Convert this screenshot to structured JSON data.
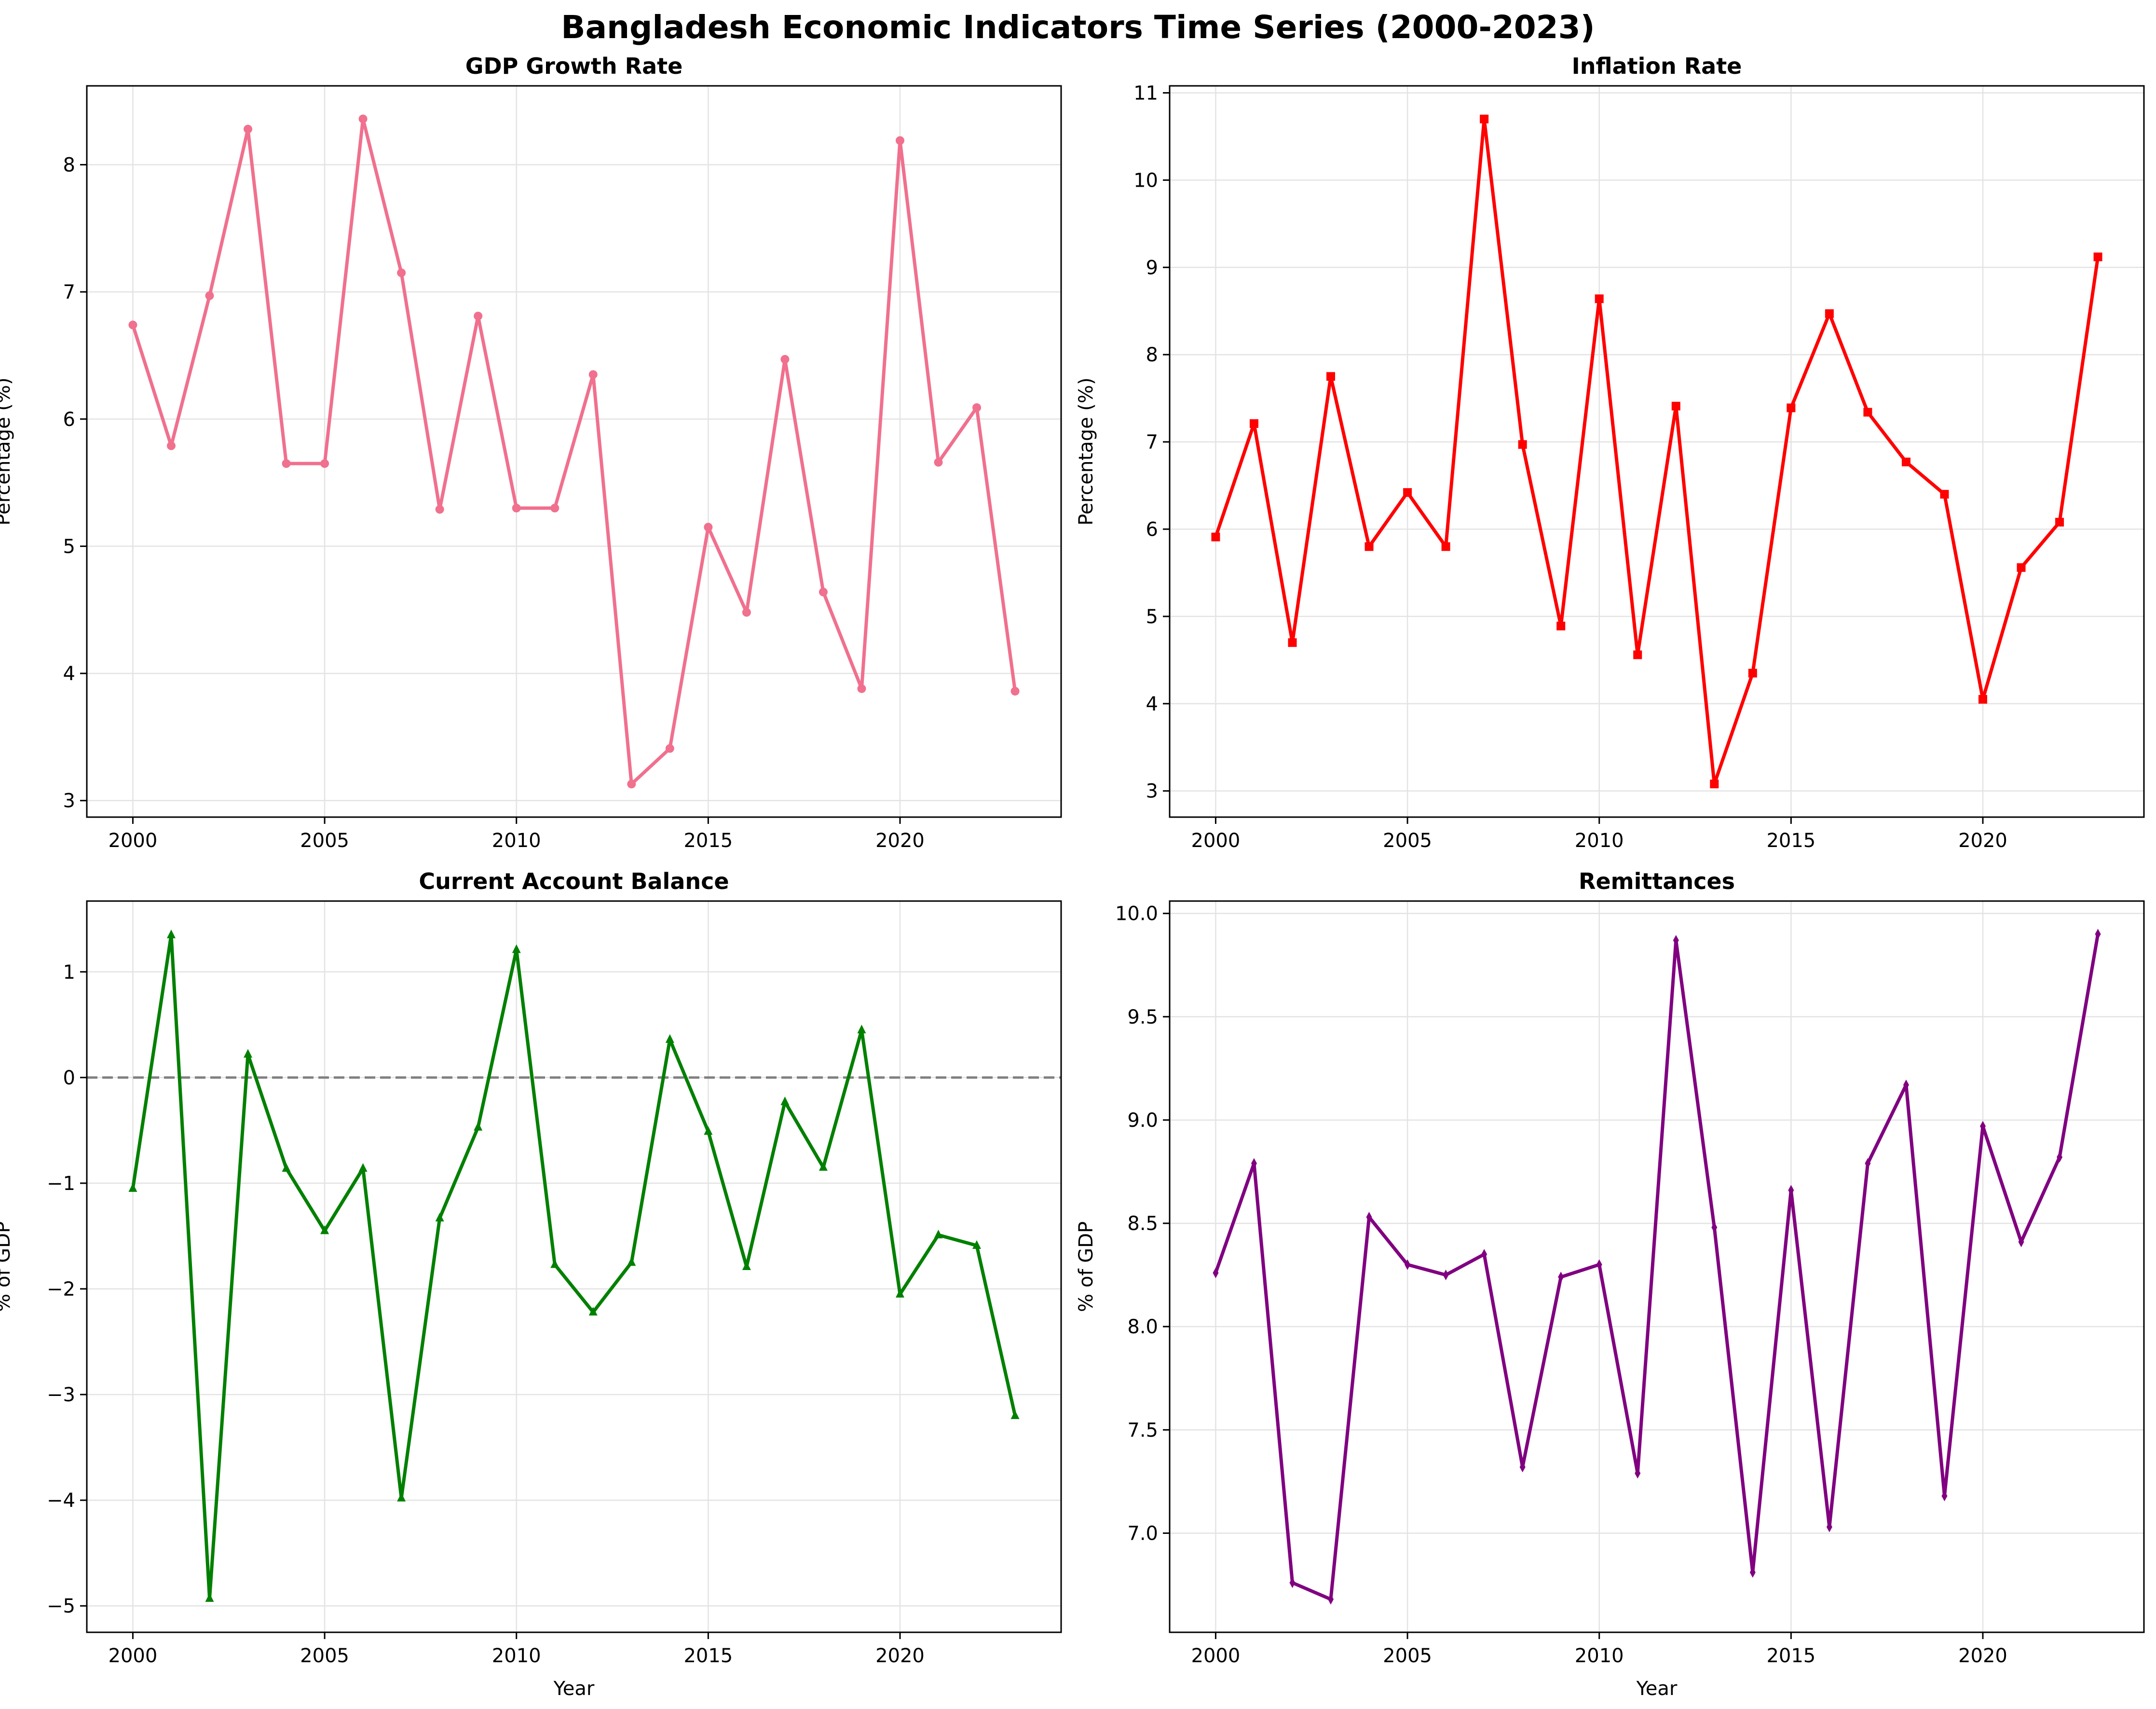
{
  "suptitle": "Bangladesh Economic Indicators Time Series (2000-2023)",
  "chart_data": [
    {
      "type": "line",
      "title": "GDP Growth Rate",
      "xlabel": "",
      "ylabel": "Percentage (%)",
      "x": [
        2000,
        2001,
        2002,
        2003,
        2004,
        2005,
        2006,
        2007,
        2008,
        2009,
        2010,
        2011,
        2012,
        2013,
        2014,
        2015,
        2016,
        2017,
        2018,
        2019,
        2020,
        2021,
        2022,
        2023
      ],
      "values": [
        6.74,
        5.79,
        6.97,
        8.28,
        5.65,
        5.65,
        8.36,
        7.15,
        5.29,
        6.81,
        5.3,
        5.3,
        6.35,
        3.13,
        3.41,
        5.15,
        4.48,
        6.47,
        4.64,
        3.88,
        8.19,
        5.66,
        6.09,
        3.86
      ],
      "xlim": [
        1998.8,
        2024.2
      ],
      "ylim": [
        2.87,
        8.62
      ],
      "xticks": [
        2000,
        2005,
        2010,
        2015,
        2020
      ],
      "yticks": [
        3,
        4,
        5,
        6,
        7,
        8
      ],
      "color": "#f0708e",
      "marker": "circle",
      "grid": true
    },
    {
      "type": "line",
      "title": "Inflation Rate",
      "xlabel": "",
      "ylabel": "Percentage (%)",
      "x": [
        2000,
        2001,
        2002,
        2003,
        2004,
        2005,
        2006,
        2007,
        2008,
        2009,
        2010,
        2011,
        2012,
        2013,
        2014,
        2015,
        2016,
        2017,
        2018,
        2019,
        2020,
        2021,
        2022,
        2023
      ],
      "values": [
        5.91,
        7.21,
        4.7,
        7.75,
        5.8,
        6.42,
        5.8,
        10.7,
        6.97,
        4.89,
        8.64,
        4.56,
        7.41,
        3.08,
        4.35,
        7.39,
        8.47,
        7.34,
        6.77,
        6.4,
        4.05,
        5.56,
        6.08,
        9.12
      ],
      "xlim": [
        1998.8,
        2024.2
      ],
      "ylim": [
        2.7,
        11.08
      ],
      "xticks": [
        2000,
        2005,
        2010,
        2015,
        2020
      ],
      "yticks": [
        3,
        4,
        5,
        6,
        7,
        8,
        9,
        10,
        11
      ],
      "color": "#ff0000",
      "marker": "square",
      "grid": true
    },
    {
      "type": "line",
      "title": "Current Account Balance",
      "xlabel": "Year",
      "ylabel": "% of GDP",
      "x": [
        2000,
        2001,
        2002,
        2003,
        2004,
        2005,
        2006,
        2007,
        2008,
        2009,
        2010,
        2011,
        2012,
        2013,
        2014,
        2015,
        2016,
        2017,
        2018,
        2019,
        2020,
        2021,
        2022,
        2023
      ],
      "values": [
        -1.05,
        1.35,
        -4.93,
        0.22,
        -0.86,
        -1.45,
        -0.86,
        -3.98,
        -1.33,
        -0.47,
        1.21,
        -1.77,
        -2.22,
        -1.75,
        0.36,
        -0.51,
        -1.79,
        -0.23,
        -0.85,
        0.45,
        -2.05,
        -1.49,
        -1.59,
        -3.2
      ],
      "xlim": [
        1998.8,
        2024.2
      ],
      "ylim": [
        -5.25,
        1.67
      ],
      "xticks": [
        2000,
        2005,
        2010,
        2015,
        2020
      ],
      "yticks": [
        -5,
        -4,
        -3,
        -2,
        -1,
        0,
        1
      ],
      "ytick_labels": [
        "−5",
        "−4",
        "−3",
        "−2",
        "−1",
        "0",
        "1"
      ],
      "reference_line": 0,
      "color": "#008000",
      "marker": "triangle",
      "grid": true
    },
    {
      "type": "line",
      "title": "Remittances",
      "xlabel": "Year",
      "ylabel": "% of GDP",
      "x": [
        2000,
        2001,
        2002,
        2003,
        2004,
        2005,
        2006,
        2007,
        2008,
        2009,
        2010,
        2011,
        2012,
        2013,
        2014,
        2015,
        2016,
        2017,
        2018,
        2019,
        2020,
        2021,
        2022,
        2023
      ],
      "values": [
        8.26,
        8.79,
        6.76,
        6.68,
        8.53,
        8.3,
        8.25,
        8.35,
        7.32,
        8.24,
        8.3,
        7.29,
        9.87,
        8.48,
        6.81,
        8.66,
        7.03,
        8.79,
        9.17,
        7.18,
        8.97,
        8.41,
        8.82,
        9.9
      ],
      "xlim": [
        1998.8,
        2024.2
      ],
      "ylim": [
        6.52,
        10.06
      ],
      "xticks": [
        2000,
        2005,
        2010,
        2015,
        2020
      ],
      "yticks": [
        7.0,
        7.5,
        8.0,
        8.5,
        9.0,
        9.5,
        10.0
      ],
      "ytick_labels": [
        "7.0",
        "7.5",
        "8.0",
        "8.5",
        "9.0",
        "9.5",
        "10.0"
      ],
      "color": "#800080",
      "marker": "diamond",
      "grid": true
    }
  ]
}
